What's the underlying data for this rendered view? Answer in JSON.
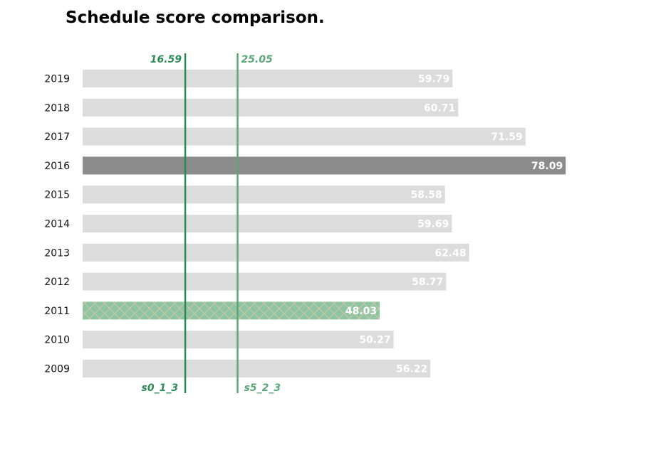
{
  "chart_data": {
    "type": "bar",
    "orientation": "horizontal",
    "title": "Schedule score comparison.",
    "categories": [
      "2019",
      "2018",
      "2017",
      "2016",
      "2015",
      "2014",
      "2013",
      "2012",
      "2011",
      "2010",
      "2009"
    ],
    "values": [
      59.79,
      60.71,
      71.59,
      78.09,
      58.58,
      59.69,
      62.48,
      58.77,
      48.03,
      50.27,
      56.22
    ],
    "value_labels": [
      "59.79",
      "60.71",
      "71.59",
      "78.09",
      "58.58",
      "59.69",
      "62.48",
      "58.77",
      "48.03",
      "50.27",
      "56.22"
    ],
    "xlim": [
      0,
      80
    ],
    "highlight": {
      "max_category": "2016",
      "min_category": "2011"
    },
    "reference_lines": [
      {
        "name": "s0_1_3",
        "value": 16.59,
        "value_label": "16.59",
        "color": "#2e8b57"
      },
      {
        "name": "s5_2_3",
        "value": 25.05,
        "value_label": "25.05",
        "color": "#5fa57a"
      }
    ],
    "colors": {
      "bar_default": "#dcdcdc",
      "bar_max": "#8c8c8c",
      "bar_min": "#8fc4a2",
      "bar_min_hatch": "#d8c9a8",
      "value_label": "#ffffff"
    },
    "grid": false,
    "axes_visible": false
  }
}
